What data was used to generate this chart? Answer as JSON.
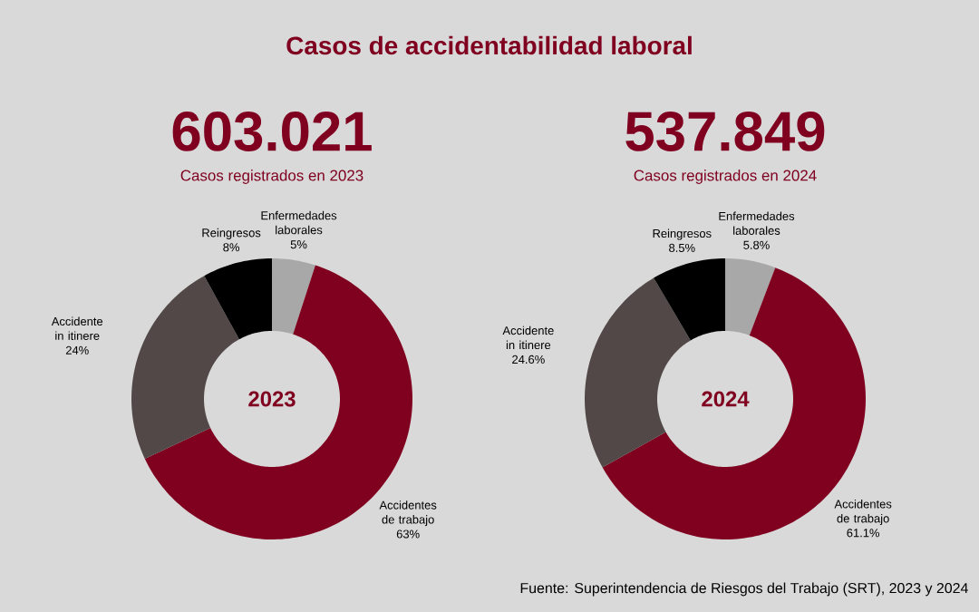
{
  "chart_data": [
    {
      "type": "donut",
      "title": "Casos de accidentabilidad laboral",
      "categories": [
        "Enfermedades laborales",
        "Accidentes de trabajo",
        "Accidente in itinere",
        "Reingresos"
      ],
      "values": [
        5,
        63,
        24,
        8
      ],
      "colors": [
        "#a8a8a8",
        "#800020",
        "#514847",
        "#000000"
      ],
      "value_labels": [
        "5%",
        "63%",
        "24%",
        "8%"
      ],
      "annotations": [
        "603.021",
        "Casos registrados en 2023",
        "2023"
      ]
    },
    {
      "type": "donut",
      "categories": [
        "Enfermedades laborales",
        "Accidentes de trabajo",
        "Accidente in itinere",
        "Reingresos"
      ],
      "values": [
        5.8,
        61.1,
        24.6,
        8.5
      ],
      "colors": [
        "#a8a8a8",
        "#800020",
        "#514847",
        "#000000"
      ],
      "value_labels": [
        "5.8%",
        "61.1%",
        "24.6%",
        "8.5%"
      ],
      "annotations": [
        "537.849",
        "Casos registrados en 2024",
        "2024",
        "Fuente: Superintendencia de Riesgos del Trabajo (SRT), 2023 y 2024"
      ]
    }
  ]
}
